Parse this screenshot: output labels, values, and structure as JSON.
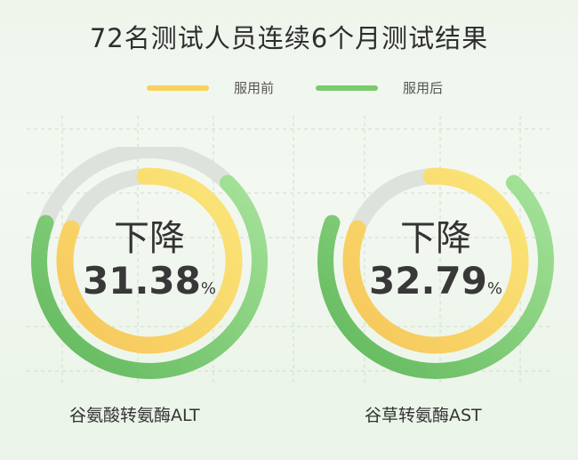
{
  "title": "72名测试人员连续6个月测试结果",
  "legend": [
    {
      "label": "服用前",
      "color": "#f9d15c"
    },
    {
      "label": "服用后",
      "color": "#7acb6c"
    }
  ],
  "chart_data": {
    "type": "donut",
    "title": "72名测试人员连续6个月测试结果",
    "series_names": [
      "服用前",
      "服用后"
    ],
    "charts": [
      {
        "label": "谷氨酸转氨酶ALT",
        "center_label": "下降",
        "value": "31.38",
        "unit": "%",
        "before_fraction": 0.82,
        "after_fraction": 0.68,
        "outer_track": true
      },
      {
        "label": "谷草转氨酶AST",
        "center_label": "下降",
        "value": "32.79",
        "unit": "%",
        "before_fraction": 0.82,
        "after_fraction": 0.68,
        "outer_track": false
      }
    ]
  },
  "colors": {
    "track": "#dde2dc",
    "before_start": "#fbe77a",
    "before_end": "#f6c65a",
    "after_start": "#a6e39a",
    "after_end": "#5fb75a"
  }
}
